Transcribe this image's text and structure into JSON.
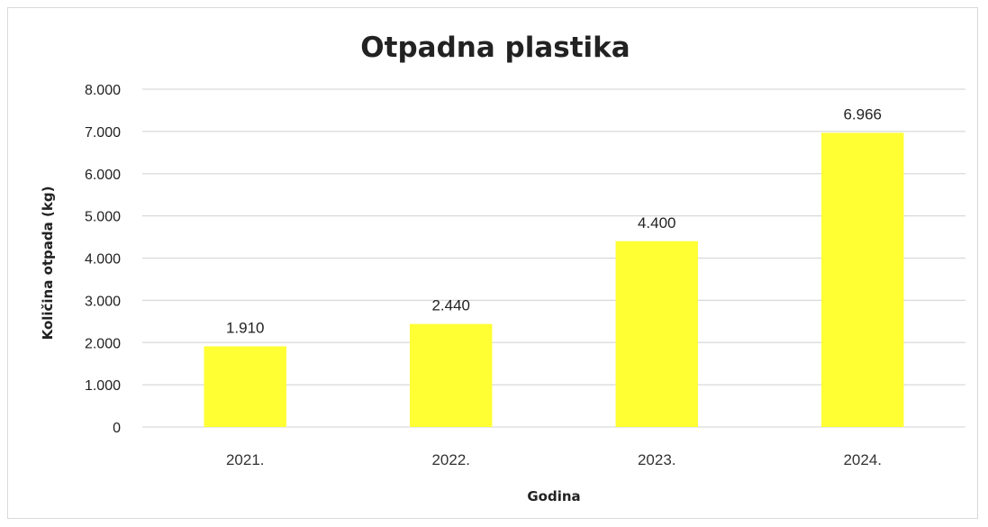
{
  "chart_data": {
    "type": "bar",
    "title": "Otpadna plastika",
    "xlabel": "Godina",
    "ylabel": "Količina otpada (kg)",
    "categories": [
      "2021.",
      "2022.",
      "2023.",
      "2024."
    ],
    "values": [
      1910,
      2440,
      4400,
      6966
    ],
    "value_labels": [
      "1.910",
      "2.440",
      "4.400",
      "6.966"
    ],
    "ylim": [
      0,
      8000
    ],
    "yticks": [
      0,
      1000,
      2000,
      3000,
      4000,
      5000,
      6000,
      7000,
      8000
    ],
    "ytick_labels": [
      "0",
      "1.000",
      "2.000",
      "3.000",
      "4.000",
      "5.000",
      "6.000",
      "7.000",
      "8.000"
    ],
    "grid": true,
    "legend": "none",
    "bar_color": "#ffff33",
    "grid_color": "#d9d9d9"
  }
}
